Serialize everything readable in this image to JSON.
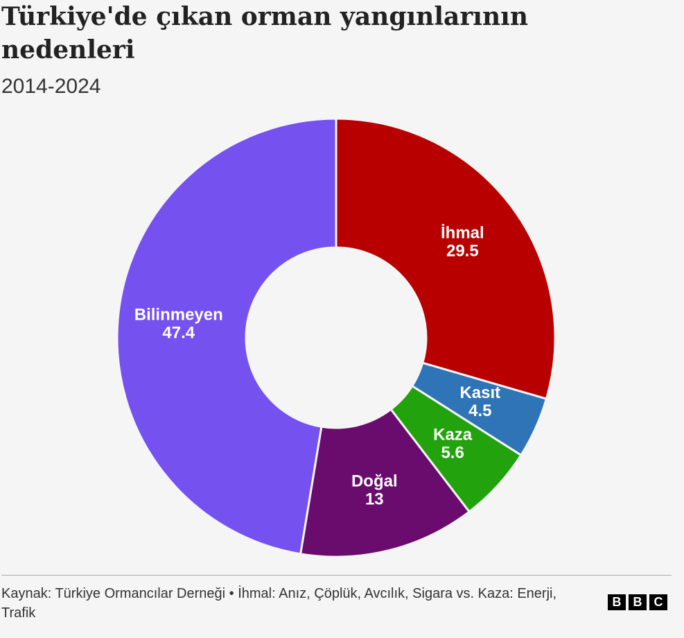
{
  "chart_data": {
    "type": "pie",
    "title": "Türkiye'de çıkan orman yangınlarının nedenleri",
    "subtitle": "2014-2024",
    "categories": [
      "İhmal",
      "Kasıt",
      "Kaza",
      "Doğal",
      "Bilinmeyen"
    ],
    "values": [
      29.5,
      4.5,
      5.6,
      13,
      47.4
    ],
    "colors": [
      "#b80000",
      "#2e74b6",
      "#22a20d",
      "#6a0c6e",
      "#7551f0"
    ],
    "source": "Kaynak: Türkiye Ormancılar Derneği • İhmal: Anız, Çöplük, Avcılık, Sigara vs. Kaza: Enerji, Trafik",
    "logo": [
      "B",
      "B",
      "C"
    ]
  }
}
